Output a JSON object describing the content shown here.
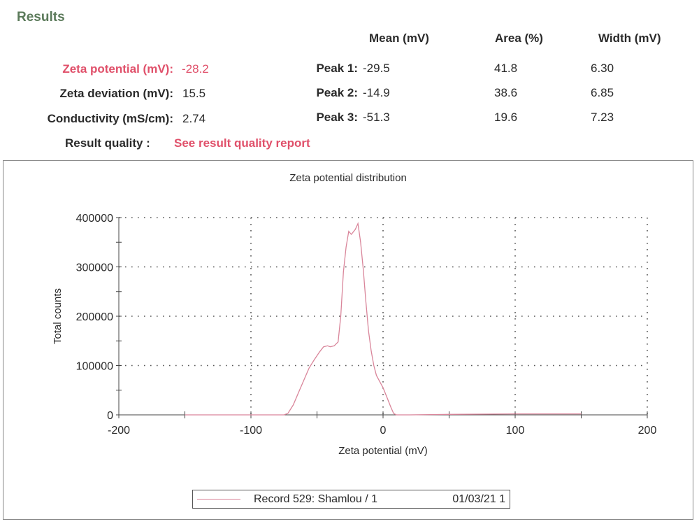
{
  "results": {
    "title": "Results",
    "zeta_potential": {
      "label": "Zeta potential (mV):",
      "value": "-28.2"
    },
    "zeta_deviation": {
      "label": "Zeta deviation (mV):",
      "value": "15.5"
    },
    "conductivity": {
      "label": "Conductivity (mS/cm):",
      "value": "2.74"
    },
    "result_quality": {
      "label": "Result quality :",
      "link": "See result quality report"
    }
  },
  "peaks": {
    "headers": [
      "Mean (mV)",
      "Area (%)",
      "Width (mV)"
    ],
    "rows": [
      {
        "label": "Peak 1:",
        "mean": "-29.5",
        "area": "41.8",
        "width": "6.30"
      },
      {
        "label": "Peak 2:",
        "mean": "-14.9",
        "area": "38.6",
        "width": "6.85"
      },
      {
        "label": "Peak 3:",
        "mean": "-51.3",
        "area": "19.6",
        "width": "7.23"
      }
    ]
  },
  "legend": {
    "series": "Record 529: Shamlou / 1",
    "date": "01/03/21 1",
    "color": "#d9859a"
  },
  "colors": {
    "accent_red": "#e0506a",
    "title_green": "#5b7a5a",
    "series": "#d9859a"
  },
  "chart_data": {
    "type": "line",
    "title": "Zeta potential distribution",
    "xlabel": "Zeta potential (mV)",
    "ylabel": "Total counts",
    "xlim": [
      -200,
      200
    ],
    "ylim": [
      0,
      400000
    ],
    "x_ticks": [
      "-200",
      "-100",
      "0",
      "100",
      "200"
    ],
    "y_ticks": [
      "0",
      "100000",
      "200000",
      "300000",
      "400000"
    ],
    "grid": "dotted",
    "legend_position": "bottom",
    "series": [
      {
        "name": "Record 529: Shamlou / 1",
        "x": [
          -150,
          -100,
          -75,
          -72,
          -68,
          -64,
          -60,
          -56,
          -52,
          -48,
          -45,
          -42,
          -40,
          -37,
          -34,
          -32,
          -30,
          -28,
          -26,
          -24,
          -21,
          -19,
          -17,
          -15,
          -13,
          -11,
          -9,
          -7,
          -5,
          -2,
          0,
          3,
          6,
          8,
          10,
          20,
          50,
          100,
          150
        ],
        "y": [
          0,
          0,
          0,
          3000,
          20000,
          45000,
          70000,
          95000,
          112000,
          128000,
          138000,
          140000,
          138000,
          140000,
          148000,
          200000,
          290000,
          340000,
          372000,
          366000,
          376000,
          388000,
          350000,
          295000,
          230000,
          170000,
          130000,
          100000,
          80000,
          65000,
          55000,
          35000,
          15000,
          3000,
          0,
          0,
          1000,
          2000,
          2000
        ]
      }
    ]
  }
}
